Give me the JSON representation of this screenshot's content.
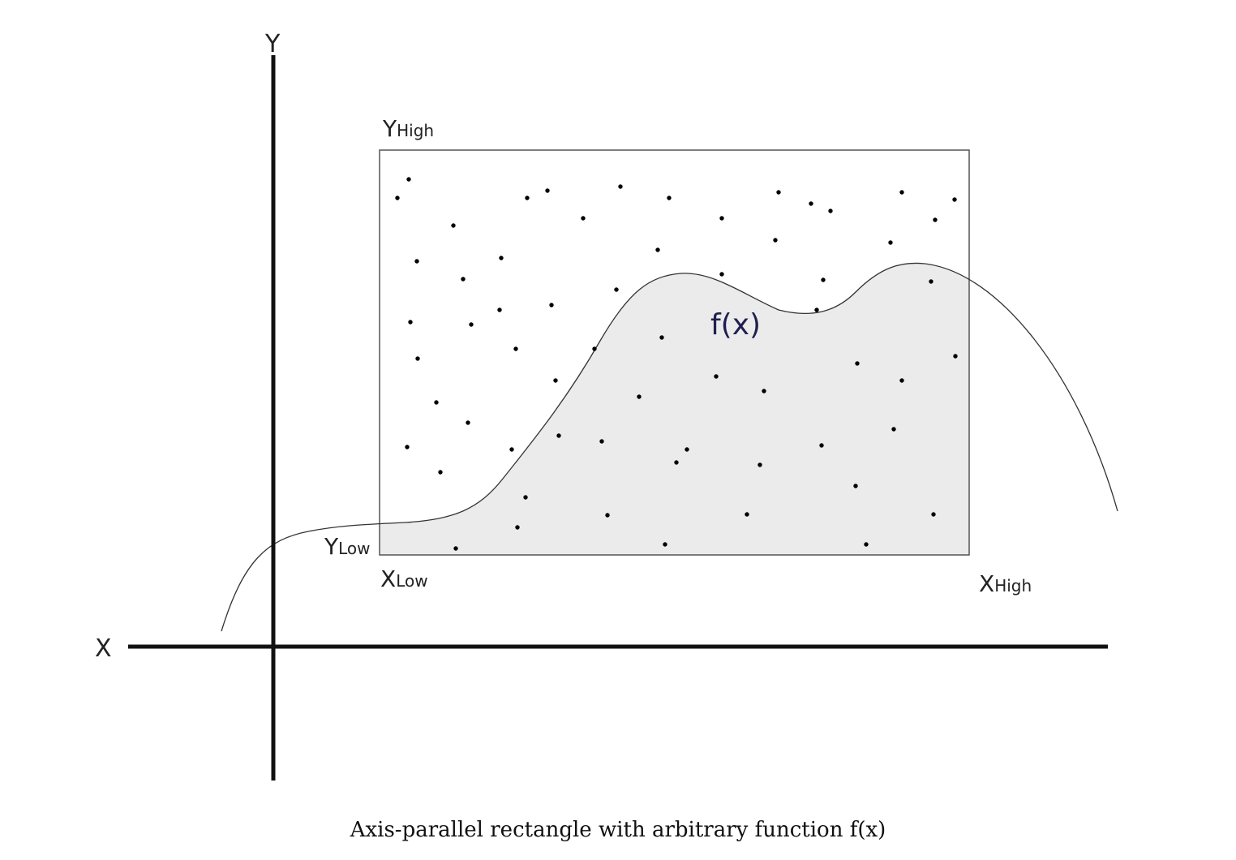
{
  "diagram": {
    "axes": {
      "x_label": "X",
      "y_label": "Y"
    },
    "bounds": {
      "y_high": {
        "main": "Y",
        "sub": "High"
      },
      "y_low": {
        "main": "Y",
        "sub": "Low"
      },
      "x_low": {
        "main": "X",
        "sub": "Low"
      },
      "x_high": {
        "main": "X",
        "sub": "High"
      }
    },
    "function_label": "f(x)",
    "colors": {
      "axis": "#111111",
      "rectangle_stroke": "#555555",
      "area_fill": "#ebebeb",
      "curve": "#333333",
      "point": "#000000",
      "function_label": "#1f2050"
    }
  },
  "caption": "Axis-parallel rectangle with arbitrary function f(x)"
}
